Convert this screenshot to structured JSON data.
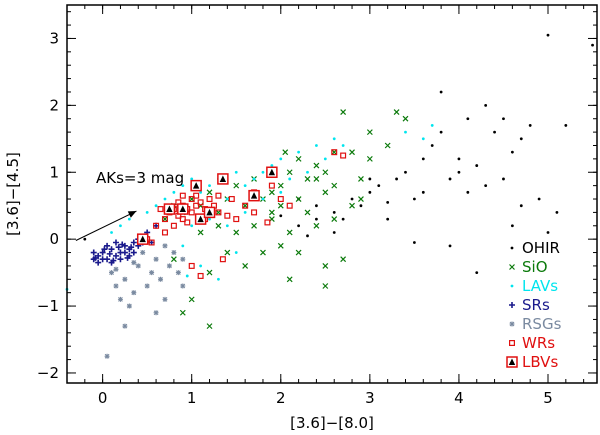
{
  "chart_data": {
    "type": "scatter",
    "title": "",
    "xlabel": "[3.6]−[8.0]",
    "ylabel": "[3.6]−[4.5]",
    "xlim": [
      -0.4,
      5.55
    ],
    "ylim": [
      -2.15,
      3.5
    ],
    "xticks": [
      0,
      1,
      2,
      3,
      4,
      5
    ],
    "yticks": [
      -2,
      -1,
      0,
      1,
      2,
      3
    ],
    "xtick_labels": [
      "0",
      "1",
      "2",
      "3",
      "4",
      "5"
    ],
    "ytick_labels": [
      "−2",
      "−1",
      "0",
      "1",
      "2",
      "3"
    ],
    "grid": false,
    "legend_position": "bottom-right",
    "annotation": {
      "text": "AKs=3 mag",
      "arrow_from": [
        -0.3,
        -0.02
      ],
      "arrow_to": [
        0.38,
        0.42
      ]
    },
    "series": [
      {
        "name": "OHIR",
        "marker": "dot",
        "color": "#000000",
        "points": [
          [
            -0.2,
            0.0
          ],
          [
            2.2,
            0.2
          ],
          [
            2.4,
            0.3
          ],
          [
            2.6,
            0.4
          ],
          [
            2.8,
            0.6
          ],
          [
            2.9,
            0.5
          ],
          [
            3.0,
            0.7
          ],
          [
            3.1,
            0.8
          ],
          [
            3.2,
            0.3
          ],
          [
            3.3,
            0.9
          ],
          [
            3.4,
            1.0
          ],
          [
            3.5,
            0.6
          ],
          [
            3.6,
            1.2
          ],
          [
            3.7,
            1.4
          ],
          [
            3.8,
            1.6
          ],
          [
            3.8,
            2.2
          ],
          [
            3.9,
            0.9
          ],
          [
            4.0,
            1.0
          ],
          [
            4.1,
            0.7
          ],
          [
            4.1,
            1.8
          ],
          [
            4.2,
            1.1
          ],
          [
            4.3,
            0.8
          ],
          [
            4.3,
            2.0
          ],
          [
            4.4,
            1.6
          ],
          [
            4.5,
            0.9
          ],
          [
            4.5,
            1.8
          ],
          [
            4.6,
            0.2
          ],
          [
            4.6,
            1.3
          ],
          [
            4.7,
            0.5
          ],
          [
            4.7,
            1.5
          ],
          [
            4.8,
            1.7
          ],
          [
            4.9,
            0.6
          ],
          [
            5.0,
            0.1
          ],
          [
            5.1,
            0.4
          ],
          [
            5.2,
            1.7
          ],
          [
            5.5,
            2.9
          ],
          [
            5.0,
            3.05
          ],
          [
            4.2,
            -0.5
          ],
          [
            3.9,
            -0.1
          ],
          [
            3.5,
            -0.05
          ],
          [
            2.2,
            0.6
          ],
          [
            2.4,
            0.5
          ],
          [
            2.7,
            0.3
          ],
          [
            3.0,
            0.9
          ],
          [
            3.6,
            0.7
          ],
          [
            4.0,
            1.2
          ],
          [
            2.0,
            0.35
          ],
          [
            2.3,
            0.05
          ],
          [
            2.6,
            0.1
          ],
          [
            3.2,
            0.55
          ]
        ]
      },
      {
        "name": "SiO",
        "marker": "x",
        "color": "#0b7a0b",
        "points": [
          [
            0.7,
            0.3
          ],
          [
            0.8,
            0.5
          ],
          [
            0.9,
            0.4
          ],
          [
            1.0,
            0.6
          ],
          [
            1.1,
            0.5
          ],
          [
            1.2,
            0.7
          ],
          [
            1.3,
            0.4
          ],
          [
            1.4,
            0.6
          ],
          [
            1.5,
            0.8
          ],
          [
            1.6,
            0.5
          ],
          [
            1.7,
            0.9
          ],
          [
            1.8,
            0.6
          ],
          [
            1.9,
            0.7
          ],
          [
            2.0,
            0.8
          ],
          [
            2.1,
            1.0
          ],
          [
            2.2,
            0.6
          ],
          [
            2.3,
            0.9
          ],
          [
            2.4,
            1.1
          ],
          [
            2.5,
            0.7
          ],
          [
            2.6,
            0.8
          ],
          [
            2.7,
            1.9
          ],
          [
            2.8,
            1.3
          ],
          [
            2.9,
            0.6
          ],
          [
            3.0,
            1.2
          ],
          [
            3.2,
            1.4
          ],
          [
            3.3,
            1.9
          ],
          [
            3.4,
            1.8
          ],
          [
            1.2,
            -0.5
          ],
          [
            1.4,
            -0.2
          ],
          [
            1.0,
            -0.9
          ],
          [
            1.2,
            -1.3
          ],
          [
            1.6,
            -0.4
          ],
          [
            2.0,
            -0.1
          ],
          [
            2.1,
            -0.6
          ],
          [
            2.2,
            -0.2
          ],
          [
            2.5,
            -0.4
          ],
          [
            2.5,
            -0.7
          ],
          [
            2.6,
            0.3
          ],
          [
            2.7,
            -0.3
          ],
          [
            0.9,
            -1.1
          ],
          [
            0.8,
            -0.3
          ],
          [
            1.8,
            -0.2
          ],
          [
            1.9,
            0.3
          ],
          [
            2.3,
            0.4
          ],
          [
            2.4,
            0.2
          ],
          [
            2.0,
            0.5
          ],
          [
            2.1,
            0.1
          ],
          [
            1.7,
            0.2
          ],
          [
            1.5,
            0.1
          ],
          [
            1.3,
            0.2
          ],
          [
            1.1,
            0.1
          ],
          [
            2.8,
            0.5
          ],
          [
            2.9,
            0.9
          ],
          [
            2.6,
            1.3
          ],
          [
            3.0,
            1.6
          ],
          [
            2.4,
            0.9
          ],
          [
            2.2,
            1.2
          ],
          [
            1.9,
            0.4
          ],
          [
            2.05,
            1.3
          ],
          [
            2.5,
            1.0
          ]
        ]
      },
      {
        "name": "LAVs",
        "marker": "dot",
        "color": "#00e5ee",
        "points": [
          [
            -0.4,
            -0.75
          ],
          [
            0.1,
            0.1
          ],
          [
            0.2,
            0.2
          ],
          [
            0.3,
            0.3
          ],
          [
            0.5,
            0.4
          ],
          [
            0.6,
            0.5
          ],
          [
            0.7,
            0.6
          ],
          [
            0.8,
            0.7
          ],
          [
            0.9,
            0.8
          ],
          [
            1.0,
            0.9
          ],
          [
            1.1,
            0.7
          ],
          [
            1.2,
            0.8
          ],
          [
            1.3,
            0.9
          ],
          [
            1.4,
            0.6
          ],
          [
            1.5,
            1.0
          ],
          [
            1.6,
            0.8
          ],
          [
            1.7,
            0.9
          ],
          [
            1.8,
            1.0
          ],
          [
            1.9,
            1.1
          ],
          [
            2.0,
            1.2
          ],
          [
            2.1,
            0.9
          ],
          [
            2.2,
            1.3
          ],
          [
            2.3,
            1.0
          ],
          [
            2.4,
            1.4
          ],
          [
            2.5,
            1.2
          ],
          [
            2.6,
            1.5
          ],
          [
            2.7,
            1.4
          ],
          [
            3.4,
            1.6
          ],
          [
            3.6,
            1.5
          ],
          [
            3.7,
            1.7
          ],
          [
            1.1,
            -0.4
          ],
          [
            1.3,
            -0.6
          ],
          [
            1.5,
            -0.2
          ],
          [
            0.9,
            -0.1
          ],
          [
            1.0,
            0.2
          ],
          [
            1.2,
            0.3
          ],
          [
            1.4,
            0.2
          ],
          [
            1.6,
            0.4
          ],
          [
            1.8,
            0.6
          ],
          [
            2.0,
            0.7
          ],
          [
            0.95,
            -0.55
          ]
        ]
      },
      {
        "name": "SRs",
        "marker": "plus",
        "color": "#1a1a8c",
        "points": [
          [
            -0.1,
            -0.3
          ],
          [
            -0.05,
            -0.25
          ],
          [
            0.0,
            -0.2
          ],
          [
            0.05,
            -0.3
          ],
          [
            0.1,
            -0.15
          ],
          [
            0.15,
            -0.25
          ],
          [
            0.2,
            -0.2
          ],
          [
            0.25,
            -0.1
          ],
          [
            0.3,
            -0.15
          ],
          [
            0.35,
            -0.05
          ],
          [
            -0.1,
            -0.2
          ],
          [
            0.0,
            -0.3
          ],
          [
            0.1,
            -0.35
          ],
          [
            0.2,
            -0.3
          ],
          [
            0.3,
            -0.25
          ],
          [
            0.4,
            -0.1
          ],
          [
            0.05,
            -0.1
          ],
          [
            0.15,
            -0.05
          ],
          [
            0.25,
            -0.2
          ],
          [
            -0.05,
            -0.35
          ],
          [
            0.4,
            0.0
          ],
          [
            0.35,
            -0.2
          ],
          [
            0.45,
            -0.05
          ],
          [
            0.5,
            0.1
          ],
          [
            0.6,
            0.2
          ],
          [
            0.55,
            -0.05
          ],
          [
            0.08,
            -0.22
          ],
          [
            0.18,
            -0.12
          ],
          [
            0.28,
            -0.28
          ],
          [
            0.12,
            -0.32
          ],
          [
            0.22,
            -0.08
          ],
          [
            0.02,
            -0.15
          ],
          [
            -0.08,
            -0.28
          ],
          [
            0.32,
            -0.12
          ]
        ]
      },
      {
        "name": "RSGs",
        "marker": "asterisk",
        "color": "#7a8aa0",
        "points": [
          [
            0.1,
            -0.5
          ],
          [
            0.15,
            -0.7
          ],
          [
            0.2,
            -0.9
          ],
          [
            0.25,
            -0.6
          ],
          [
            0.3,
            -1.0
          ],
          [
            0.35,
            -0.8
          ],
          [
            0.4,
            -0.4
          ],
          [
            0.5,
            -0.7
          ],
          [
            0.55,
            -0.5
          ],
          [
            0.6,
            -0.3
          ],
          [
            0.65,
            -0.6
          ],
          [
            0.7,
            -0.9
          ],
          [
            0.75,
            -0.4
          ],
          [
            0.8,
            -0.2
          ],
          [
            0.85,
            -0.5
          ],
          [
            0.9,
            -0.3
          ],
          [
            0.25,
            -1.3
          ],
          [
            0.05,
            -1.75
          ],
          [
            0.45,
            -0.2
          ],
          [
            0.6,
            -1.1
          ],
          [
            0.7,
            -0.1
          ],
          [
            0.9,
            -0.7
          ],
          [
            0.35,
            -0.35
          ],
          [
            0.15,
            -0.45
          ]
        ]
      },
      {
        "name": "WRs",
        "marker": "square",
        "color": "#e01010",
        "points": [
          [
            0.5,
            0.0
          ],
          [
            0.6,
            0.2
          ],
          [
            0.7,
            0.3
          ],
          [
            0.75,
            0.4
          ],
          [
            0.8,
            0.45
          ],
          [
            0.85,
            0.35
          ],
          [
            0.9,
            0.5
          ],
          [
            0.95,
            0.45
          ],
          [
            1.0,
            0.6
          ],
          [
            1.05,
            0.5
          ],
          [
            1.1,
            0.55
          ],
          [
            1.15,
            0.45
          ],
          [
            1.2,
            0.6
          ],
          [
            1.25,
            0.5
          ],
          [
            1.3,
            0.4
          ],
          [
            1.4,
            0.35
          ],
          [
            1.5,
            0.3
          ],
          [
            1.7,
            0.7
          ],
          [
            1.9,
            0.8
          ],
          [
            2.0,
            0.6
          ],
          [
            2.1,
            0.5
          ],
          [
            2.6,
            1.3
          ],
          [
            2.7,
            1.25
          ],
          [
            1.0,
            0.4
          ],
          [
            0.9,
            0.3
          ],
          [
            0.95,
            0.25
          ],
          [
            0.8,
            0.2
          ],
          [
            0.85,
            0.55
          ],
          [
            1.05,
            0.65
          ],
          [
            1.15,
            0.3
          ],
          [
            1.3,
            0.65
          ],
          [
            1.45,
            0.6
          ],
          [
            1.6,
            0.5
          ],
          [
            0.7,
            0.1
          ],
          [
            0.55,
            -0.05
          ],
          [
            0.65,
            0.45
          ],
          [
            0.9,
            0.65
          ],
          [
            1.0,
            -0.4
          ],
          [
            1.1,
            -0.55
          ],
          [
            1.35,
            -0.3
          ],
          [
            1.7,
            0.4
          ],
          [
            1.85,
            0.25
          ]
        ]
      },
      {
        "name": "LBVs",
        "marker": "triangle-box",
        "color": "#e01010",
        "points": [
          [
            0.45,
            0.0
          ],
          [
            0.75,
            0.45
          ],
          [
            0.9,
            0.45
          ],
          [
            1.05,
            0.8
          ],
          [
            1.1,
            0.3
          ],
          [
            1.2,
            0.4
          ],
          [
            1.35,
            0.9
          ],
          [
            1.7,
            0.65
          ],
          [
            1.9,
            1.0
          ]
        ]
      }
    ]
  }
}
